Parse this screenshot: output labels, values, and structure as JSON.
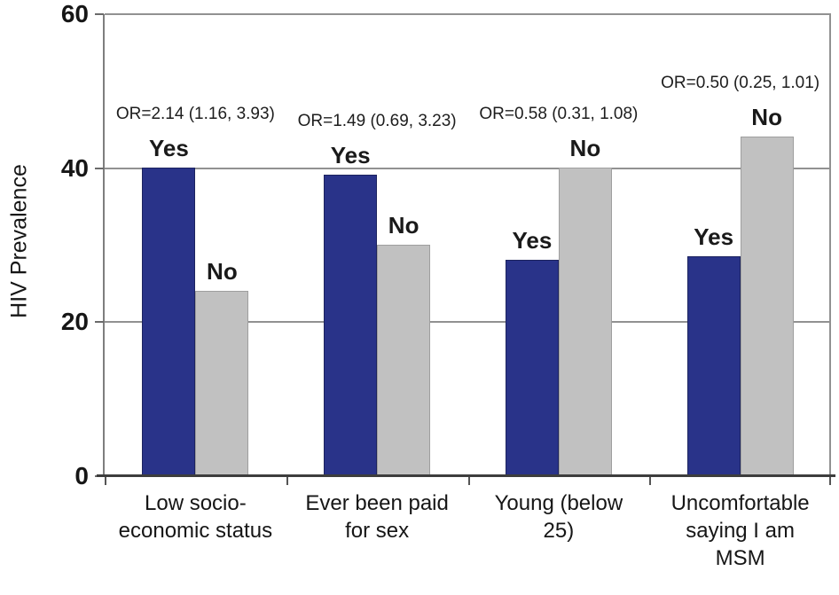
{
  "chart_data": {
    "type": "bar",
    "title": "",
    "xlabel": "",
    "ylabel": "HIV Prevalence",
    "ylim": [
      0,
      60
    ],
    "yticks": [
      0,
      20,
      40,
      60
    ],
    "grid": "horizontal gridlines at 20, 40 and 60; right plot border shown",
    "legend_position": "none (each bar labeled Yes/No directly above it)",
    "categories": [
      "Low socio-economic status",
      "Ever been paid for sex",
      "Young (below 25)",
      "Uncomfortable saying I am MSM"
    ],
    "category_lines": [
      [
        "Low socio-",
        "economic status"
      ],
      [
        "Ever been paid",
        "for sex"
      ],
      [
        "Young (below",
        "25)"
      ],
      [
        "Uncomfortable",
        "saying I am",
        "MSM"
      ]
    ],
    "series": [
      {
        "name": "Yes",
        "color": "#293389",
        "values": [
          40,
          39,
          28,
          28.5
        ]
      },
      {
        "name": "No",
        "color": "#c1c1c1",
        "values": [
          24,
          30,
          40,
          44
        ]
      }
    ],
    "annotations": [
      {
        "category": "Low socio-economic status",
        "text": "OR=2.14 (1.16, 3.93)"
      },
      {
        "category": "Ever been paid for sex",
        "text": "OR=1.49 (0.69, 3.23)"
      },
      {
        "category": "Young (below 25)",
        "text": "OR=0.58 (0.31, 1.08)"
      },
      {
        "category": "Uncomfortable saying I am MSM",
        "text": "OR=0.50 (0.25, 1.01)"
      }
    ],
    "colors": {
      "yes_bar": "#293389",
      "no_bar": "#c1c1c1",
      "gridline": "#919191",
      "axis_line": "#3d3d3d",
      "text": "#161616"
    }
  }
}
